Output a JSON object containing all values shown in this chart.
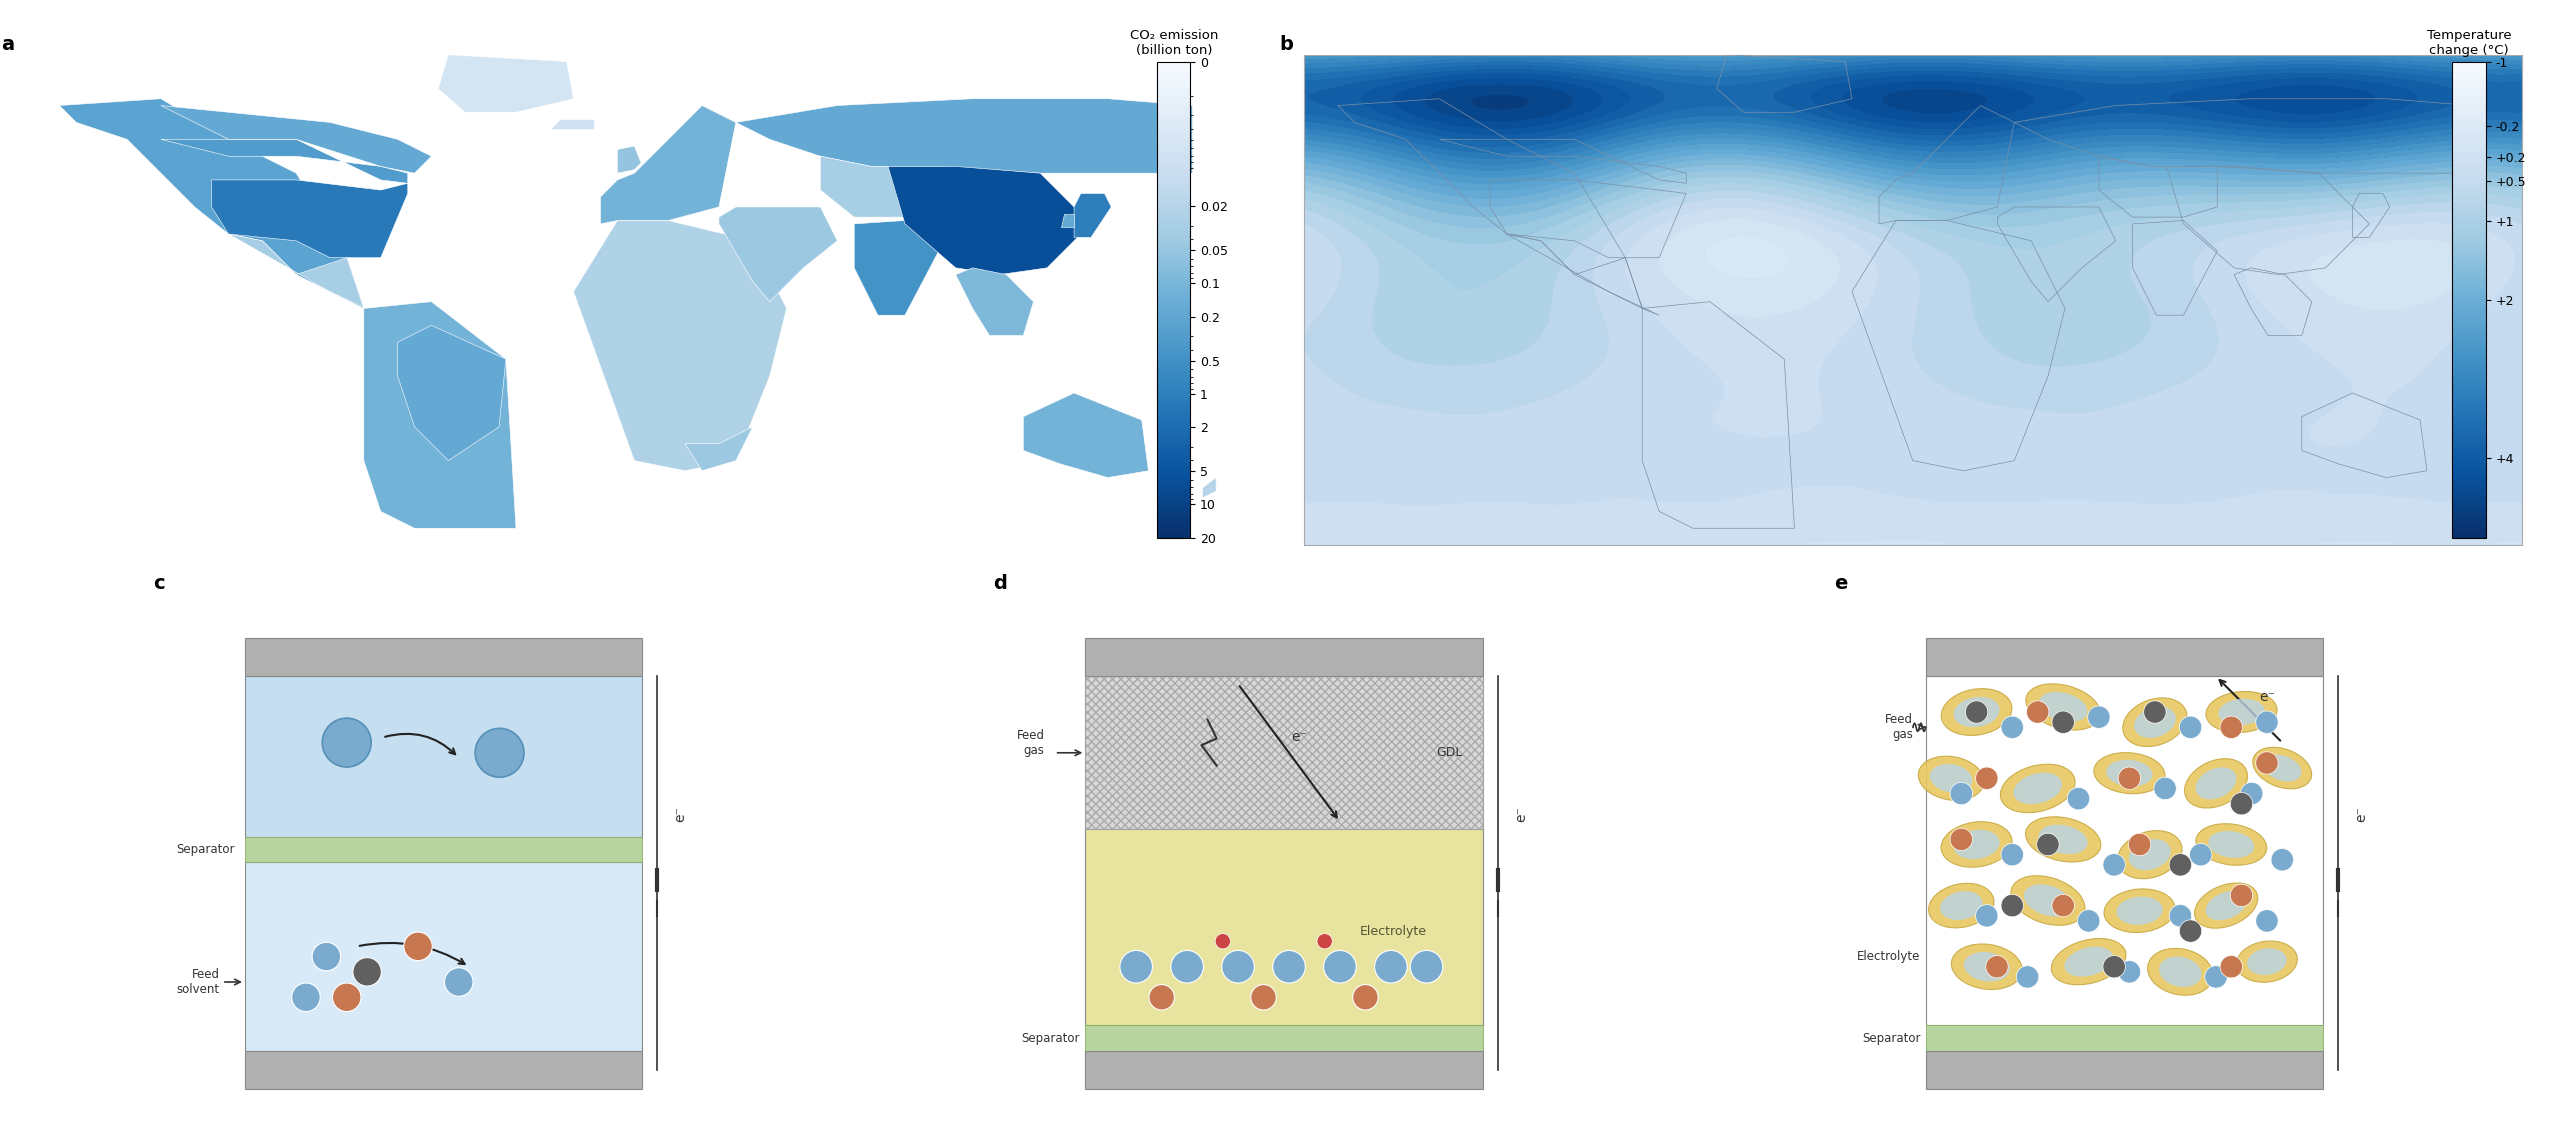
{
  "panel_a_label": "a",
  "panel_b_label": "b",
  "panel_c_label": "c",
  "panel_d_label": "d",
  "panel_e_label": "e",
  "colorbar_a_title": "CO₂ emission\n(billion ton)",
  "colorbar_a_ticks": [
    "20",
    "10",
    "5",
    "2",
    "1",
    "0.5",
    "0.2",
    "0.1",
    "0.05",
    "0.02",
    "0"
  ],
  "colorbar_b_title": "Temperature\nchange (°C)",
  "colorbar_b_ticks": [
    "+ 4",
    "+ 2",
    "+ 1",
    "+ 0.5",
    "+ 0.2",
    "- 0.2",
    "- 1"
  ],
  "bg_color": "#ffffff",
  "panel_label_fontsize": 14,
  "separator_color_face": "#b8d4a0",
  "separator_color_edge": "#88b060",
  "electrode_color_face": "#b0b0b0",
  "electrode_color_edge": "#888888",
  "blue_liquid_upper": "#c5dff0",
  "blue_liquid_lower": "#d8eaf8",
  "yellow_color": "#e8c860",
  "yellow_edge": "#c8a840",
  "gdl_color": "#d8d8d8",
  "electrolyte_color": "#e8e4a0",
  "mol_blue": "#7aabce",
  "mol_orange": "#c87850",
  "mol_dark": "#606060",
  "text_color": "#333333",
  "arrow_color": "#222222",
  "outline_color": "#888888"
}
